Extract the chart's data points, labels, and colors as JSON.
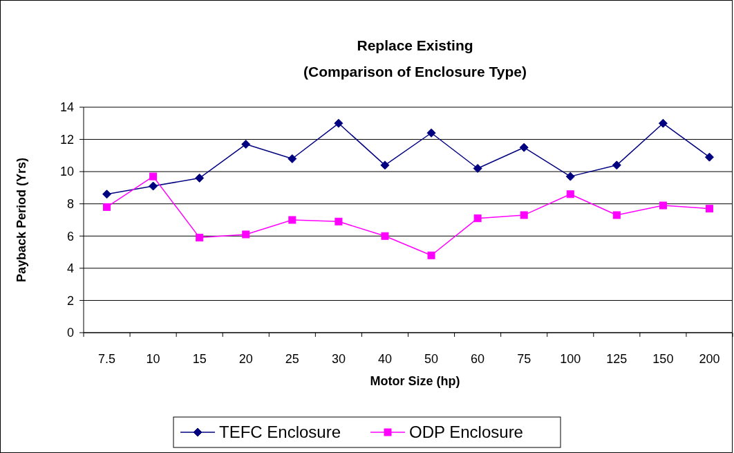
{
  "chart_data": {
    "type": "line",
    "title": "Replace Existing\n(Comparison of Enclosure Type)",
    "xlabel": "Motor Size (hp)",
    "ylabel": "Payback Period (Yrs)",
    "categories": [
      "7.5",
      "10",
      "15",
      "20",
      "25",
      "30",
      "40",
      "50",
      "60",
      "75",
      "100",
      "125",
      "150",
      "200"
    ],
    "series": [
      {
        "name": "TEFC Enclosure",
        "color": "#000080",
        "marker": "diamond",
        "values": [
          8.6,
          9.1,
          9.6,
          11.7,
          10.8,
          13.0,
          10.4,
          12.4,
          10.2,
          11.5,
          9.7,
          10.4,
          13.0,
          10.9
        ]
      },
      {
        "name": "ODP Enclosure",
        "color": "#ff00ff",
        "marker": "square",
        "values": [
          7.8,
          9.7,
          5.9,
          6.1,
          7.0,
          6.9,
          6.0,
          4.8,
          7.1,
          7.3,
          8.6,
          7.3,
          7.9,
          7.7
        ]
      }
    ],
    "ylim": [
      0,
      14
    ],
    "yticks": [
      0,
      2,
      4,
      6,
      8,
      10,
      12,
      14
    ],
    "grid": "y",
    "legend": "bottom"
  }
}
